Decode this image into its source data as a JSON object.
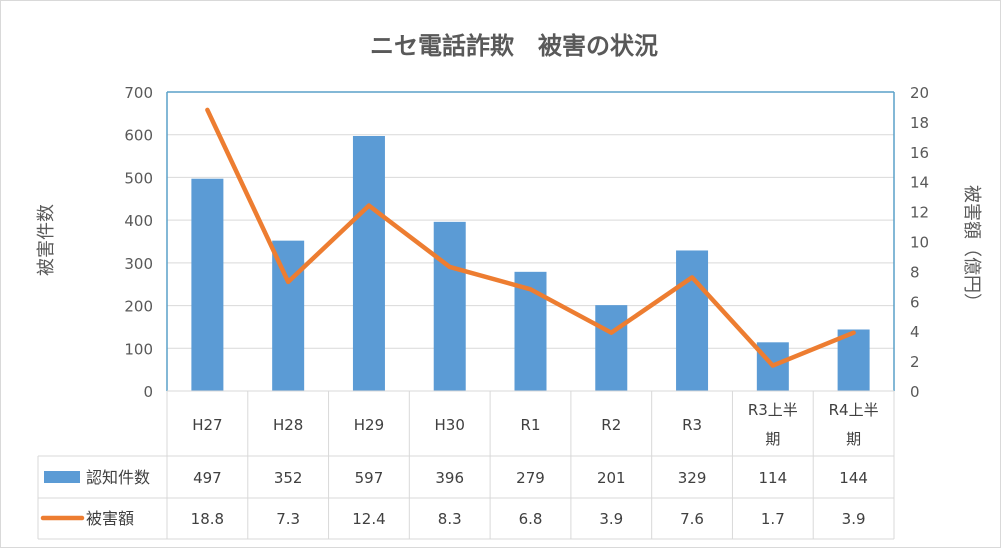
{
  "chart_data": {
    "type": "bar",
    "title": "ニセ電話詐欺　被害の状況",
    "categories": [
      "H27",
      "H28",
      "H29",
      "H30",
      "R1",
      "R2",
      "R3",
      "R3上半期",
      "R4上半期"
    ],
    "category_lines": [
      [
        "H27"
      ],
      [
        "H28"
      ],
      [
        "H29"
      ],
      [
        "H30"
      ],
      [
        "R1"
      ],
      [
        "R2"
      ],
      [
        "R3"
      ],
      [
        "R3上半",
        "期"
      ],
      [
        "R4上半",
        "期"
      ]
    ],
    "ylabel": "被害件数",
    "y2label": "被害額（億円）",
    "ylim": [
      0,
      700
    ],
    "y2lim": [
      0,
      20
    ],
    "yticks": [
      "0",
      "100",
      "200",
      "300",
      "400",
      "500",
      "600",
      "700"
    ],
    "y2ticks": [
      "0",
      "2",
      "4",
      "6",
      "8",
      "10",
      "12",
      "14",
      "16",
      "18",
      "20"
    ],
    "grid": true,
    "legend": "data-table",
    "series": [
      {
        "name": "認知件数",
        "kind": "bar",
        "axis": "left",
        "color": "#5b9bd5",
        "values": [
          497,
          352,
          597,
          396,
          279,
          201,
          329,
          114,
          144
        ],
        "labels": [
          "497",
          "352",
          "597",
          "396",
          "279",
          "201",
          "329",
          "114",
          "144"
        ]
      },
      {
        "name": "被害額",
        "kind": "line",
        "axis": "right",
        "color": "#ed7d31",
        "values": [
          18.8,
          7.3,
          12.4,
          8.3,
          6.8,
          3.9,
          7.6,
          1.7,
          3.9
        ],
        "labels": [
          "18.8",
          "7.3",
          "12.4",
          "8.3",
          "6.8",
          "3.9",
          "7.6",
          "1.7",
          "3.9"
        ]
      }
    ]
  }
}
